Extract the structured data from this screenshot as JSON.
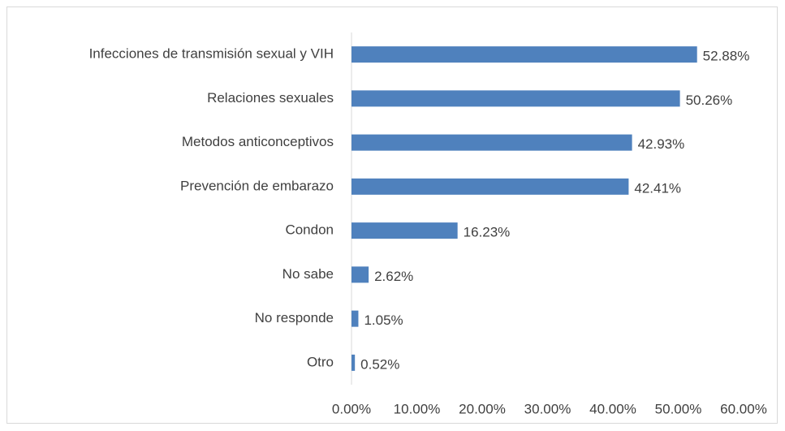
{
  "chart_data": {
    "type": "barh",
    "categories": [
      "Infecciones de transmisión sexual y VIH",
      "Relaciones sexuales",
      "Metodos anticonceptivos",
      "Prevención de embarazo",
      "Condon",
      "No sabe",
      "No responde",
      "Otro"
    ],
    "values": [
      52.88,
      50.26,
      42.93,
      42.41,
      16.23,
      2.62,
      1.05,
      0.52
    ],
    "value_labels": [
      "52.88%",
      "50.26%",
      "42.93%",
      "42.41%",
      "16.23%",
      "2.62%",
      "1.05%",
      "0.52%"
    ],
    "color": "#4f81bd",
    "xlim": [
      0,
      60
    ],
    "xticks": [
      {
        "value": 0,
        "label": "0.00%"
      },
      {
        "value": 10,
        "label": "10.00%"
      },
      {
        "value": 20,
        "label": "20.00%"
      },
      {
        "value": 30,
        "label": "30.00%"
      },
      {
        "value": 40,
        "label": "40.00%"
      },
      {
        "value": 50,
        "label": "50.00%"
      },
      {
        "value": 60,
        "label": "60.00%"
      }
    ],
    "grid": false
  }
}
